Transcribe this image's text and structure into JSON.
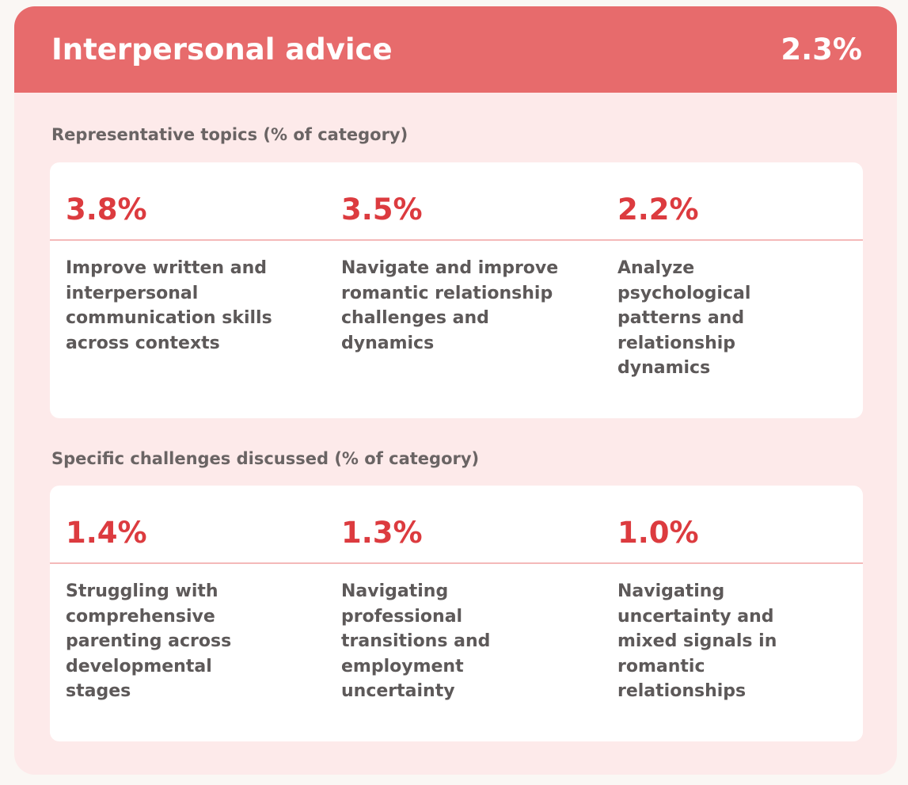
{
  "header": {
    "title": "Interpersonal advice",
    "percent": "2.3%"
  },
  "colors": {
    "header": "#e76b6c",
    "accent": "#dc3b3f",
    "background": "#fdeaea"
  },
  "topics": {
    "label": "Representative topics (% of category)",
    "items": [
      {
        "percent": "3.8%",
        "text": "Improve written and interpersonal communication skills across contexts"
      },
      {
        "percent": "3.5%",
        "text": "Navigate and improve romantic relationship challenges and dynamics"
      },
      {
        "percent": "2.2%",
        "text": "Analyze psychological patterns and relationship dynamics"
      }
    ]
  },
  "challenges": {
    "label": "Specific challenges discussed (% of category)",
    "items": [
      {
        "percent": "1.4%",
        "text": "Struggling with comprehensive parenting across developmental stages"
      },
      {
        "percent": "1.3%",
        "text": "Navigating professional transitions and employment uncertainty"
      },
      {
        "percent": "1.0%",
        "text": "Navigating uncertainty and mixed signals in romantic relationships"
      }
    ]
  }
}
